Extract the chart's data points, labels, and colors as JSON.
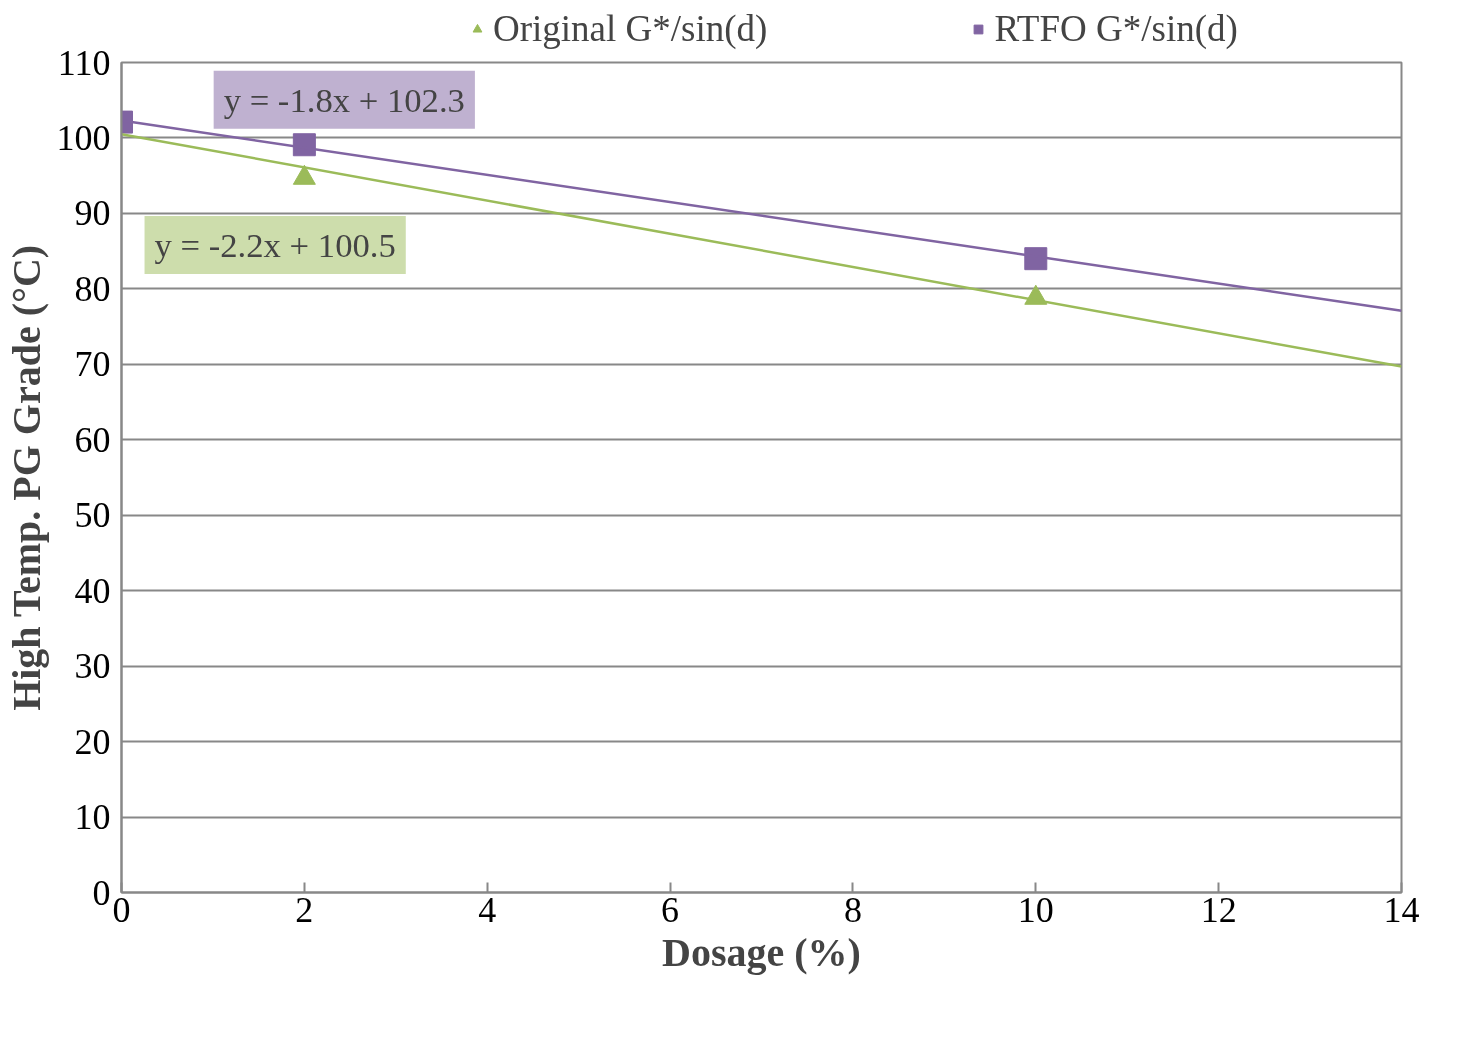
{
  "chart_data": {
    "type": "scatter",
    "xlabel": "Dosage (%)",
    "ylabel": "High Temp. PG Grade (°C)",
    "xlim": [
      0,
      14
    ],
    "xticks": [
      0,
      2,
      4,
      6,
      8,
      10,
      12,
      14
    ],
    "ylim": [
      0,
      110
    ],
    "yticks": [
      0,
      10,
      20,
      30,
      40,
      50,
      60,
      70,
      80,
      90,
      100,
      110
    ],
    "grid": "y",
    "legend": "top",
    "series": [
      {
        "name": "Original G*/sin(d)",
        "color": "#9bbb59",
        "marker": "triangle",
        "x": [
          2,
          10
        ],
        "values": [
          94.7,
          78.8
        ]
      },
      {
        "name": "RTFO G*/sin(d)",
        "color": "#8064a2",
        "marker": "square",
        "x": [
          0,
          2,
          10
        ],
        "values": [
          102.1,
          99.1,
          84.0
        ]
      },
      {
        "type": "line",
        "color": "#9bbb59",
        "marker": "none",
        "x": [
          0,
          14
        ],
        "values": [
          100.5,
          69.7
        ]
      },
      {
        "type": "line",
        "color": "#8064a2",
        "marker": "none",
        "x": [
          0,
          14
        ],
        "values": [
          102.3,
          77.1
        ]
      }
    ],
    "annotations": [
      "y = -1.8x + 102.3",
      "y = -2.2x + 100.5"
    ]
  }
}
